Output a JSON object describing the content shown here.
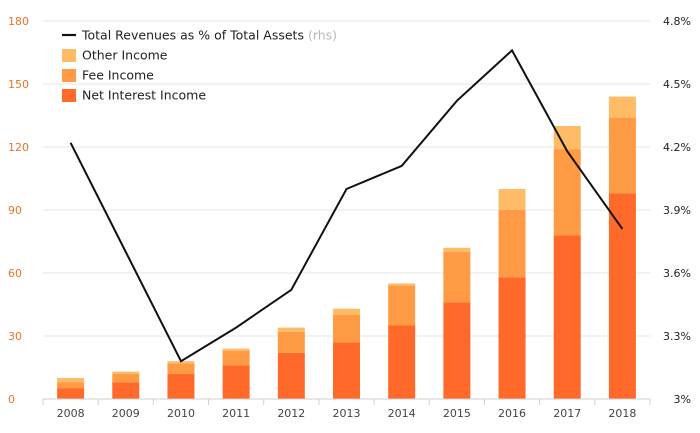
{
  "chart_data": {
    "type": "bar",
    "categories": [
      "2008",
      "2009",
      "2010",
      "2011",
      "2012",
      "2013",
      "2014",
      "2015",
      "2016",
      "2017",
      "2018"
    ],
    "series": [
      {
        "name": "Net Interest Income",
        "values": [
          5,
          8,
          12,
          16,
          22,
          27,
          35,
          46,
          58,
          78,
          98
        ],
        "color": "#ff6a2a"
      },
      {
        "name": "Fee Income",
        "values": [
          3,
          4,
          5,
          7,
          10,
          13,
          19,
          24,
          32,
          41,
          36
        ],
        "color": "#ff9b45"
      },
      {
        "name": "Other Income",
        "values": [
          2,
          1,
          1,
          1,
          2,
          3,
          1,
          2,
          10,
          11,
          10
        ],
        "color": "#ffbb66"
      }
    ],
    "line_series": {
      "name": "Total Revenues as % of Total Assets",
      "name_note": "(rhs)",
      "values": [
        4.22,
        3.7,
        3.18,
        3.34,
        3.52,
        4.0,
        4.11,
        4.42,
        4.66,
        4.18,
        3.81
      ],
      "color": "#111111"
    },
    "y_left": {
      "ylim": [
        0,
        180
      ],
      "ticks": [
        0,
        30,
        60,
        90,
        120,
        150,
        180
      ],
      "tick_labels": [
        "0",
        "30",
        "60",
        "90",
        "120",
        "150",
        "180"
      ]
    },
    "y_right": {
      "ylim": [
        3.0,
        4.8
      ],
      "ticks": [
        3.0,
        3.3,
        3.6,
        3.9,
        4.2,
        4.5,
        4.8
      ],
      "tick_labels": [
        "3%",
        "3.3%",
        "3.6%",
        "3.9%",
        "4.2%",
        "4.5%",
        "4.8%"
      ]
    },
    "legend_placement": "top-left",
    "grid": true,
    "colors": {
      "left_axis_text": "#e8742c",
      "gridline": "#e6e6e6",
      "axis_line": "#cfcfcf"
    }
  }
}
